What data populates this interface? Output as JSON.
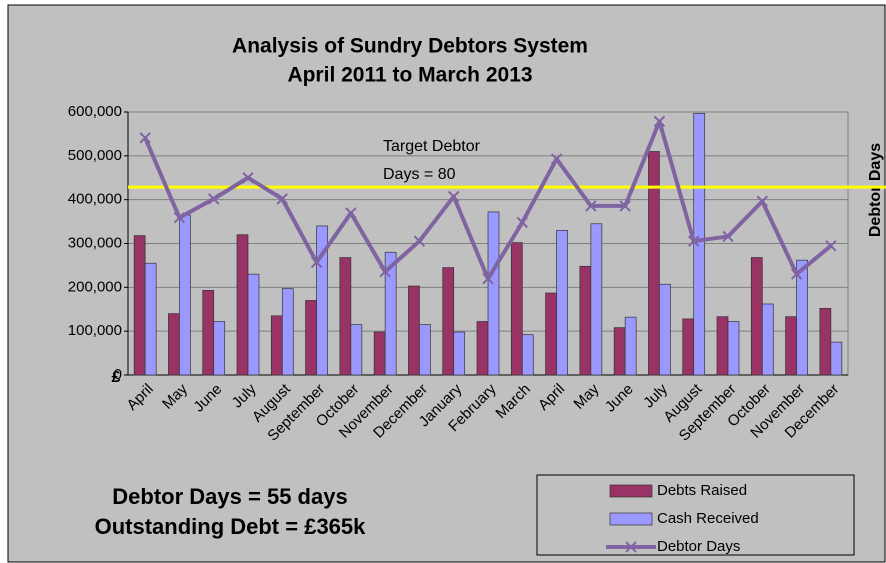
{
  "chart_data": {
    "type": "bar_line",
    "title": "Analysis of Sundry Debtors System",
    "subtitle": "April 2011 to March 2013",
    "y_label": "£",
    "y2_label": "Debtor Days",
    "categories": [
      "April",
      "May",
      "June",
      "July",
      "August",
      "September",
      "October",
      "November",
      "December",
      "January",
      "February",
      "March",
      "April",
      "May",
      "June",
      "July",
      "August",
      "September",
      "October",
      "November",
      "December"
    ],
    "series": [
      {
        "name": "Debts Raised",
        "type": "bar",
        "color": "#993366",
        "values": [
          318000,
          140000,
          193000,
          320000,
          135000,
          170000,
          268000,
          98000,
          203000,
          245000,
          122000,
          302000,
          187000,
          248000,
          108000,
          510000,
          128000,
          133000,
          268000,
          133000,
          152000
        ]
      },
      {
        "name": "Cash Received",
        "type": "bar",
        "color": "#9999ff",
        "values": [
          255000,
          365000,
          122000,
          230000,
          197000,
          340000,
          115000,
          280000,
          115000,
          98000,
          372000,
          92000,
          330000,
          345000,
          132000,
          207000,
          597000,
          122000,
          162000,
          262000,
          75000
        ]
      },
      {
        "name": "Debtor Days",
        "type": "line",
        "axis": "y2",
        "color": "#8064a2",
        "values": [
          101,
          67,
          75,
          84,
          75,
          48,
          69,
          44,
          57,
          76,
          41,
          65,
          92,
          72,
          72,
          108,
          57,
          59,
          74,
          43,
          55
        ]
      }
    ],
    "ylim": [
      0,
      600000
    ],
    "yticks": [
      0,
      {
        "value": 100000,
        "label": "100,000"
      },
      {
        "value": 200000,
        "label": "200,000"
      },
      {
        "value": 300000,
        "label": "300,000"
      },
      {
        "value": 400000,
        "label": "400,000"
      },
      {
        "value": 500000,
        "label": "500,000"
      },
      {
        "value": 600000,
        "label": "600,000"
      }
    ],
    "y2lim": [
      0,
      112
    ],
    "grid": true,
    "target_line": {
      "value": 80,
      "color": "#ffff00",
      "label_lines": [
        "Target Debtor",
        "Days = 80"
      ]
    },
    "annotations": [
      "Debtor Days = 55 days",
      "Outstanding Debt = £365k"
    ],
    "legend": "bottom-right"
  }
}
